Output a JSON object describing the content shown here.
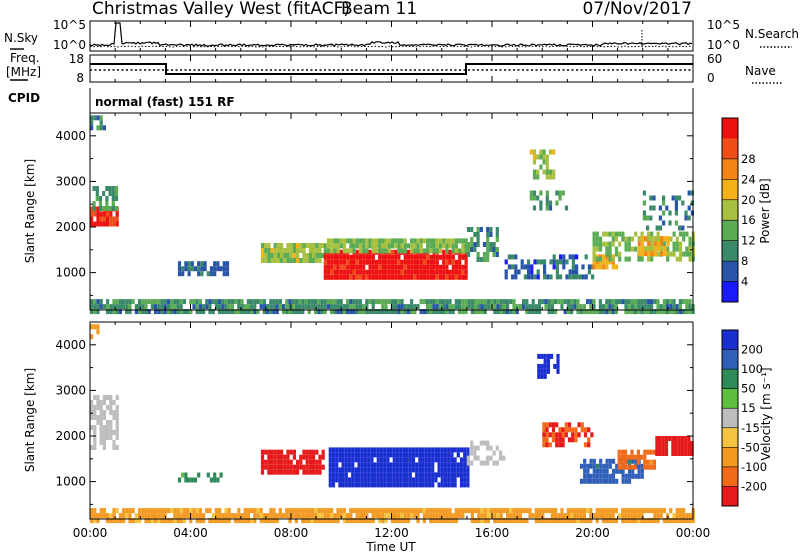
{
  "header": {
    "radar": "Christmas Valley West (fitACF)",
    "beam": "Beam 11",
    "date": "07/Nov/2017"
  },
  "top_panels": {
    "nsky_label": "N.Sky",
    "nsky_ticks": [
      "10^5",
      "10^0"
    ],
    "nsearch_label": "N.Search",
    "nsearch_ticks": [
      "10^5",
      "10^0"
    ],
    "freq_label_1": "Freq.",
    "freq_label_2": "[MHz]",
    "freq_ticks": [
      "18",
      "8"
    ],
    "nave_label": "Nave",
    "nave_ticks": [
      "60",
      "0"
    ],
    "cpid_label": "CPID",
    "cpid_text": "normal (fast) 151 RF"
  },
  "colors": {
    "power_scale": [
      "#1a1aff",
      "#2855a8",
      "#3a8a6a",
      "#5bab55",
      "#a8c040",
      "#f3b11a",
      "#f58418",
      "#f04e18",
      "#ee1111"
    ],
    "velocity_scale": [
      "#1a2fd0",
      "#2f5fb8",
      "#2e8a58",
      "#5cbf3e",
      "#bdbdbd",
      "#f5c542",
      "#f39a22",
      "#f06a1a",
      "#e61a1a"
    ]
  },
  "chart_data": [
    {
      "type": "heatmap",
      "name": "power",
      "ylabel": "Slant Range [km]",
      "xlabel": "Time UT",
      "x_ticks": [
        "00:00",
        "04:00",
        "08:00",
        "12:00",
        "16:00",
        "20:00",
        "00:00"
      ],
      "y_ticks": [
        "1000",
        "2000",
        "3000",
        "4000"
      ],
      "xlim_hours": [
        0,
        24
      ],
      "ylim_km": [
        180,
        4500
      ],
      "colorbar_label": "Power [dB]",
      "colorbar_ticks": [
        "4",
        "8",
        "12",
        "16",
        "20",
        "24",
        "28"
      ],
      "colorbar_range": [
        0,
        30
      ],
      "regions": [
        {
          "t0": 0.0,
          "t1": 24.0,
          "r0": 200,
          "r1": 420,
          "v": 9,
          "d": 0.85
        },
        {
          "t0": 0.0,
          "t1": 1.1,
          "r0": 2100,
          "r1": 2450,
          "v": 27,
          "d": 0.95
        },
        {
          "t0": 0.1,
          "t1": 1.1,
          "r0": 2450,
          "r1": 2900,
          "v": 10,
          "d": 0.7
        },
        {
          "t0": 0.0,
          "t1": 0.6,
          "r0": 4200,
          "r1": 4450,
          "v": 8,
          "d": 0.5
        },
        {
          "t0": 3.5,
          "t1": 5.5,
          "r0": 1000,
          "r1": 1250,
          "v": 6,
          "d": 0.6
        },
        {
          "t0": 6.8,
          "t1": 9.3,
          "r0": 1300,
          "r1": 1650,
          "v": 14,
          "d": 0.9
        },
        {
          "t0": 9.3,
          "t1": 15.0,
          "r0": 900,
          "r1": 1500,
          "v": 29,
          "d": 0.95
        },
        {
          "t0": 9.3,
          "t1": 15.0,
          "r0": 1500,
          "r1": 1750,
          "v": 13,
          "d": 0.9
        },
        {
          "t0": 15.0,
          "t1": 16.2,
          "r0": 1300,
          "r1": 2000,
          "v": 9,
          "d": 0.6
        },
        {
          "t0": 16.5,
          "t1": 20.0,
          "r0": 900,
          "r1": 1400,
          "v": 6,
          "d": 0.45
        },
        {
          "t0": 17.5,
          "t1": 19.0,
          "r0": 2400,
          "r1": 2800,
          "v": 9,
          "d": 0.5
        },
        {
          "t0": 17.5,
          "t1": 18.4,
          "r0": 3100,
          "r1": 3700,
          "v": 14,
          "d": 0.55
        },
        {
          "t0": 20.0,
          "t1": 21.0,
          "r0": 1100,
          "r1": 1400,
          "v": 20,
          "d": 0.9
        },
        {
          "t0": 20.0,
          "t1": 24.0,
          "r0": 1300,
          "r1": 1900,
          "v": 13,
          "d": 0.6
        },
        {
          "t0": 21.8,
          "t1": 23.0,
          "r0": 1400,
          "r1": 1800,
          "v": 18,
          "d": 0.85
        },
        {
          "t0": 22.0,
          "t1": 24.0,
          "r0": 2000,
          "r1": 2800,
          "v": 8,
          "d": 0.35
        }
      ]
    },
    {
      "type": "heatmap",
      "name": "velocity",
      "ylabel": "Slant Range [km]",
      "xlabel": "Time UT",
      "x_ticks": [
        "00:00",
        "04:00",
        "08:00",
        "12:00",
        "16:00",
        "20:00",
        "00:00"
      ],
      "y_ticks": [
        "1000",
        "2000",
        "3000",
        "4000"
      ],
      "xlim_hours": [
        0,
        24
      ],
      "ylim_km": [
        180,
        4500
      ],
      "colorbar_label": "Velocity [m s⁻¹]",
      "colorbar_ticks": [
        "200",
        "100",
        "50",
        "15",
        "-15",
        "-50",
        "-100",
        "-200"
      ],
      "colorbar_range": [
        -250,
        250
      ],
      "regions": [
        {
          "t0": 0.0,
          "t1": 24.0,
          "r0": 200,
          "r1": 420,
          "v": -40,
          "d": 0.85
        },
        {
          "t0": 0.0,
          "t1": 1.1,
          "r0": 1800,
          "r1": 2900,
          "v": 0,
          "d": 0.7
        },
        {
          "t0": 0.0,
          "t1": 0.5,
          "r0": 4200,
          "r1": 4450,
          "v": -60,
          "d": 0.5
        },
        {
          "t0": 3.5,
          "t1": 5.2,
          "r0": 1000,
          "r1": 1200,
          "v": 40,
          "d": 0.6
        },
        {
          "t0": 6.8,
          "t1": 9.3,
          "r0": 1200,
          "r1": 1700,
          "v": -200,
          "d": 0.9
        },
        {
          "t0": 9.5,
          "t1": 15.0,
          "r0": 900,
          "r1": 1750,
          "v": 230,
          "d": 0.95
        },
        {
          "t0": 15.0,
          "t1": 16.5,
          "r0": 1400,
          "r1": 1900,
          "v": 0,
          "d": 0.5
        },
        {
          "t0": 17.8,
          "t1": 18.6,
          "r0": 3300,
          "r1": 3800,
          "v": 180,
          "d": 0.7
        },
        {
          "t0": 18.0,
          "t1": 20.0,
          "r0": 1800,
          "r1": 2300,
          "v": -150,
          "d": 0.6
        },
        {
          "t0": 19.5,
          "t1": 22.0,
          "r0": 1000,
          "r1": 1500,
          "v": 90,
          "d": 0.75
        },
        {
          "t0": 21.0,
          "t1": 22.5,
          "r0": 1300,
          "r1": 1700,
          "v": -90,
          "d": 0.7
        },
        {
          "t0": 22.5,
          "t1": 24.0,
          "r0": 1600,
          "r1": 2000,
          "v": -220,
          "d": 0.8
        }
      ]
    }
  ]
}
